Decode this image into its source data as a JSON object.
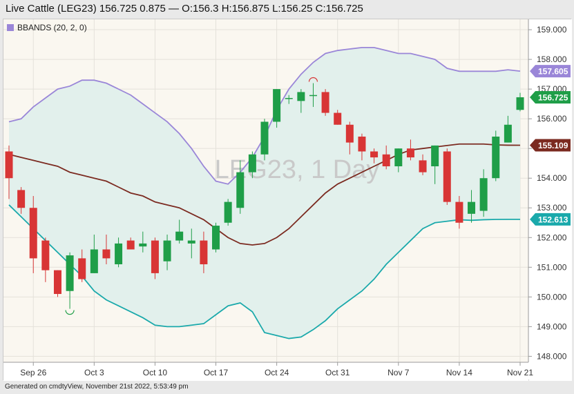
{
  "header": {
    "title": "Live Cattle (LEG23) 156.725 0.875 — O:156.3 H:156.875 L:156.25 C:156.725"
  },
  "legend": {
    "label": "BBANDS (20, 2, 0)"
  },
  "watermark": "LEG23, 1 Day",
  "footer": {
    "text": "Generated on cmdtyView, November 21st 2022, 5:53:49 pm"
  },
  "colors": {
    "up": "#1f9e48",
    "down": "#d83535",
    "upper_band": "#9a86d8",
    "middle_band": "#7b2a20",
    "lower_band": "#1aa9ab",
    "band_fill": "#e2f0ec",
    "plot_bg": "#faf7f0"
  },
  "chart_data": {
    "type": "candlestick",
    "title": "Live Cattle (LEG23)",
    "indicator": "BBANDS (20, 2, 0)",
    "ylim": [
      147.8,
      159.35
    ],
    "y_ticks": [
      148,
      149,
      150,
      151,
      152,
      153,
      154,
      155,
      156,
      157,
      158,
      159
    ],
    "y_tick_labels": [
      "148.000",
      "149.000",
      "150.000",
      "151.000",
      "152.000",
      "153.000",
      "154.000",
      "155.000",
      "156.000",
      "157.000",
      "158.000",
      "159.000"
    ],
    "x_tick_labels": [
      {
        "label": "Sep 26",
        "index": 2
      },
      {
        "label": "Oct 3",
        "index": 7
      },
      {
        "label": "Oct 10",
        "index": 12
      },
      {
        "label": "Oct 17",
        "index": 17
      },
      {
        "label": "Oct 24",
        "index": 22
      },
      {
        "label": "Oct 31",
        "index": 27
      },
      {
        "label": "Nov 7",
        "index": 32
      },
      {
        "label": "Nov 14",
        "index": 37
      },
      {
        "label": "Nov 21",
        "index": 42
      }
    ],
    "candles": [
      {
        "o": 154.9,
        "h": 155.1,
        "l": 153.3,
        "c": 154.0
      },
      {
        "o": 153.6,
        "h": 153.7,
        "l": 152.8,
        "c": 153.0
      },
      {
        "o": 153.0,
        "h": 153.4,
        "l": 150.8,
        "c": 151.3
      },
      {
        "o": 151.9,
        "h": 152.0,
        "l": 150.5,
        "c": 150.9
      },
      {
        "o": 150.9,
        "h": 150.9,
        "l": 150.0,
        "c": 150.1
      },
      {
        "o": 150.2,
        "h": 151.5,
        "l": 149.6,
        "c": 151.4
      },
      {
        "o": 151.3,
        "h": 151.6,
        "l": 150.5,
        "c": 150.6
      },
      {
        "o": 150.8,
        "h": 152.1,
        "l": 150.8,
        "c": 151.6
      },
      {
        "o": 151.6,
        "h": 152.1,
        "l": 151.1,
        "c": 151.3
      },
      {
        "o": 151.1,
        "h": 152.0,
        "l": 151.0,
        "c": 151.8
      },
      {
        "o": 151.9,
        "h": 152.0,
        "l": 151.6,
        "c": 151.6
      },
      {
        "o": 151.7,
        "h": 152.2,
        "l": 151.5,
        "c": 151.8
      },
      {
        "o": 151.9,
        "h": 152.0,
        "l": 150.6,
        "c": 150.8
      },
      {
        "o": 151.2,
        "h": 152.1,
        "l": 150.9,
        "c": 151.9
      },
      {
        "o": 151.9,
        "h": 152.6,
        "l": 151.8,
        "c": 152.2
      },
      {
        "o": 151.8,
        "h": 152.3,
        "l": 151.3,
        "c": 151.9
      },
      {
        "o": 151.9,
        "h": 152.2,
        "l": 150.8,
        "c": 151.1
      },
      {
        "o": 151.6,
        "h": 152.5,
        "l": 151.5,
        "c": 152.4
      },
      {
        "o": 152.5,
        "h": 153.3,
        "l": 152.4,
        "c": 153.2
      },
      {
        "o": 153.0,
        "h": 154.6,
        "l": 152.8,
        "c": 154.2
      },
      {
        "o": 154.2,
        "h": 154.9,
        "l": 154.0,
        "c": 154.8
      },
      {
        "o": 154.8,
        "h": 156.0,
        "l": 154.6,
        "c": 155.9
      },
      {
        "o": 155.9,
        "h": 157.0,
        "l": 155.7,
        "c": 157.0
      },
      {
        "o": 156.7,
        "h": 156.8,
        "l": 156.5,
        "c": 156.7
      },
      {
        "o": 156.6,
        "h": 157.0,
        "l": 156.2,
        "c": 156.9
      },
      {
        "o": 156.8,
        "h": 157.2,
        "l": 156.4,
        "c": 156.8
      },
      {
        "o": 156.9,
        "h": 157.0,
        "l": 156.1,
        "c": 156.2
      },
      {
        "o": 156.2,
        "h": 156.3,
        "l": 155.8,
        "c": 155.8
      },
      {
        "o": 155.8,
        "h": 155.9,
        "l": 154.8,
        "c": 155.2
      },
      {
        "o": 155.4,
        "h": 155.5,
        "l": 154.6,
        "c": 154.9
      },
      {
        "o": 154.9,
        "h": 155.0,
        "l": 154.5,
        "c": 154.7
      },
      {
        "o": 154.8,
        "h": 155.1,
        "l": 154.3,
        "c": 154.4
      },
      {
        "o": 154.4,
        "h": 155.0,
        "l": 154.2,
        "c": 155.0
      },
      {
        "o": 155.0,
        "h": 155.3,
        "l": 154.6,
        "c": 154.7
      },
      {
        "o": 154.6,
        "h": 154.8,
        "l": 154.1,
        "c": 154.2
      },
      {
        "o": 154.4,
        "h": 155.1,
        "l": 153.8,
        "c": 155.1
      },
      {
        "o": 154.9,
        "h": 155.0,
        "l": 153.1,
        "c": 153.2
      },
      {
        "o": 153.2,
        "h": 153.4,
        "l": 152.3,
        "c": 152.5
      },
      {
        "o": 152.8,
        "h": 153.6,
        "l": 152.5,
        "c": 153.2
      },
      {
        "o": 152.9,
        "h": 154.3,
        "l": 152.7,
        "c": 154.0
      },
      {
        "o": 154.0,
        "h": 155.6,
        "l": 153.9,
        "c": 155.4
      },
      {
        "o": 155.2,
        "h": 156.1,
        "l": 155.2,
        "c": 155.8
      },
      {
        "o": 156.3,
        "h": 156.875,
        "l": 156.25,
        "c": 156.725
      }
    ],
    "series": [
      {
        "name": "upper",
        "values": [
          155.9,
          156.0,
          156.4,
          156.7,
          157.0,
          157.1,
          157.3,
          157.3,
          157.2,
          157.0,
          156.8,
          156.5,
          156.2,
          155.9,
          155.5,
          155.0,
          154.4,
          153.9,
          153.8,
          154.2,
          154.7,
          155.4,
          156.3,
          157.0,
          157.5,
          157.9,
          158.2,
          158.3,
          158.35,
          158.4,
          158.4,
          158.3,
          158.2,
          158.2,
          158.1,
          158.0,
          157.7,
          157.6,
          157.6,
          157.6,
          157.6,
          157.65,
          157.605
        ]
      },
      {
        "name": "middle",
        "values": [
          154.8,
          154.7,
          154.6,
          154.5,
          154.4,
          154.2,
          154.1,
          154.0,
          153.9,
          153.7,
          153.5,
          153.4,
          153.2,
          153.1,
          153.0,
          152.8,
          152.6,
          152.3,
          152.0,
          151.8,
          151.75,
          151.8,
          152.0,
          152.3,
          152.7,
          153.1,
          153.5,
          153.8,
          154.0,
          154.2,
          154.4,
          154.6,
          154.8,
          154.95,
          155.0,
          155.05,
          155.1,
          155.15,
          155.15,
          155.15,
          155.12,
          155.11,
          155.109
        ]
      },
      {
        "name": "lower",
        "values": [
          153.1,
          152.7,
          152.3,
          151.9,
          151.5,
          151.1,
          150.7,
          150.2,
          149.9,
          149.7,
          149.5,
          149.3,
          149.05,
          149.0,
          149.0,
          149.05,
          149.1,
          149.4,
          149.7,
          149.8,
          149.5,
          148.8,
          148.7,
          148.6,
          148.65,
          148.9,
          149.2,
          149.6,
          149.9,
          150.2,
          150.6,
          151.1,
          151.5,
          151.9,
          152.3,
          152.5,
          152.55,
          152.6,
          152.58,
          152.6,
          152.61,
          152.613,
          152.613
        ]
      }
    ],
    "last_values": [
      {
        "series": "upper",
        "label": "157.605",
        "value": 157.605
      },
      {
        "series": "close",
        "label": "156.725",
        "value": 156.725
      },
      {
        "series": "middle",
        "label": "155.109",
        "value": 155.109
      },
      {
        "series": "lower",
        "label": "152.613",
        "value": 152.613
      }
    ],
    "grid": true
  }
}
